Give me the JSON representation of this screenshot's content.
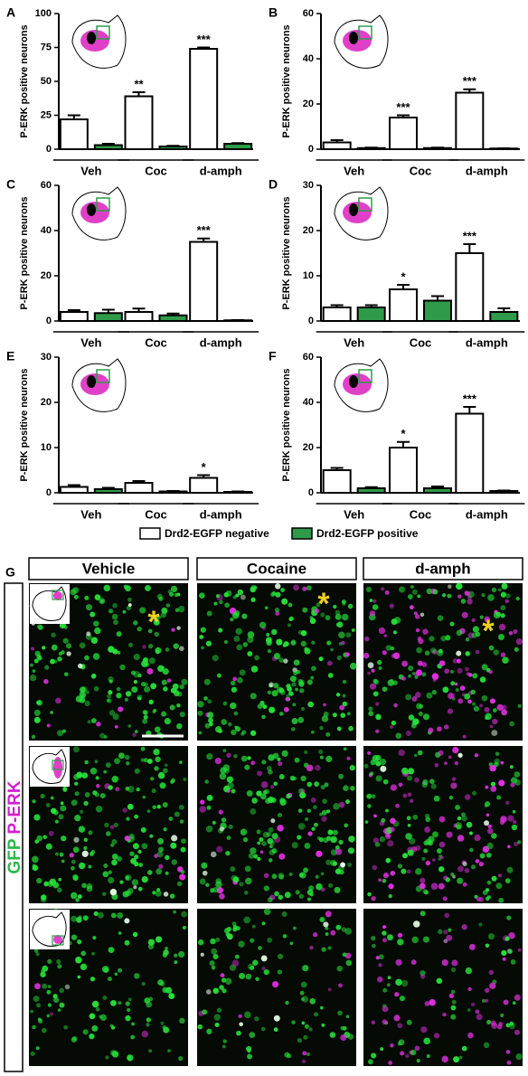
{
  "chart_data": [
    {
      "type": "bar",
      "panel": "A",
      "ylabel": "P-ERK positive neurons",
      "ylim": [
        0,
        100
      ],
      "yticks": [
        0,
        25,
        50,
        75,
        100
      ],
      "categories": [
        "Veh",
        "Coc",
        "d-amph"
      ],
      "series": [
        {
          "name": "Drd2-EGFP negative",
          "color": "#ffffff",
          "values": [
            22,
            39,
            74
          ],
          "errors": [
            3,
            3,
            1
          ]
        },
        {
          "color": "#2e9a4a",
          "values": [
            3,
            2,
            4
          ],
          "errors": [
            1,
            0.5,
            0.5
          ]
        }
      ],
      "significance": [
        null,
        "**",
        "***"
      ]
    },
    {
      "type": "bar",
      "panel": "B",
      "ylabel": "P-ERK positive neurons",
      "ylim": [
        0,
        60
      ],
      "yticks": [
        0,
        20,
        40,
        60
      ],
      "categories": [
        "Veh",
        "Coc",
        "d-amph"
      ],
      "series": [
        {
          "name": "Drd2-EGFP negative",
          "color": "#ffffff",
          "values": [
            3,
            14,
            25
          ],
          "errors": [
            1,
            1,
            1.5
          ]
        },
        {
          "name": "Drd2-EGFP positive",
          "color": "#2e9a4a",
          "values": [
            0.5,
            0.5,
            0.3
          ],
          "errors": [
            0.2,
            0.2,
            0.1
          ]
        }
      ],
      "significance": [
        null,
        "***",
        "***"
      ]
    },
    {
      "type": "bar",
      "panel": "C",
      "ylabel": "P-ERK positive neurons",
      "ylim": [
        0,
        60
      ],
      "yticks": [
        0,
        20,
        40,
        60
      ],
      "categories": [
        "Veh",
        "Coc",
        "d-amph"
      ],
      "series": [
        {
          "color": "#ffffff",
          "values": [
            4,
            4,
            35
          ],
          "errors": [
            0.8,
            1.5,
            1.5
          ]
        },
        {
          "color": "#2e9a4a",
          "values": [
            3.5,
            2.5,
            0.3
          ],
          "errors": [
            1.5,
            0.8,
            0.1
          ]
        }
      ],
      "significance": [
        null,
        null,
        "***"
      ]
    },
    {
      "type": "bar",
      "panel": "D",
      "ylabel": "P-ERK positive neurons",
      "ylim": [
        0,
        30
      ],
      "yticks": [
        0,
        10,
        20,
        30
      ],
      "categories": [
        "Veh",
        "Coc",
        "d-amph"
      ],
      "series": [
        {
          "color": "#ffffff",
          "values": [
            3,
            7,
            15
          ],
          "errors": [
            0.5,
            1,
            2
          ]
        },
        {
          "color": "#2e9a4a",
          "values": [
            3,
            4.5,
            2
          ],
          "errors": [
            0.5,
            1,
            0.8
          ]
        }
      ],
      "significance": [
        null,
        "*",
        "***"
      ]
    },
    {
      "type": "bar",
      "panel": "E",
      "ylabel": "P-ERK positive neurons",
      "ylim": [
        0,
        30
      ],
      "yticks": [
        0,
        10,
        20,
        30
      ],
      "categories": [
        "Veh",
        "Coc",
        "d-amph"
      ],
      "series": [
        {
          "color": "#ffffff",
          "values": [
            1.3,
            2.2,
            3.3
          ],
          "errors": [
            0.4,
            0.4,
            0.6
          ]
        },
        {
          "color": "#2e9a4a",
          "values": [
            0.8,
            0.3,
            0.2
          ],
          "errors": [
            0.3,
            0.1,
            0.1
          ]
        }
      ],
      "significance": [
        null,
        null,
        "*"
      ]
    },
    {
      "type": "bar",
      "panel": "F",
      "ylabel": "P-ERK positive neurons",
      "ylim": [
        0,
        60
      ],
      "yticks": [
        0,
        20,
        40,
        60
      ],
      "categories": [
        "Veh",
        "Coc",
        "d-amph"
      ],
      "series": [
        {
          "color": "#ffffff",
          "values": [
            10,
            20,
            35
          ],
          "errors": [
            1,
            2.5,
            3
          ]
        },
        {
          "color": "#2e9a4a",
          "values": [
            2,
            2,
            0.8
          ],
          "errors": [
            0.5,
            0.8,
            0.2
          ]
        }
      ],
      "significance": [
        null,
        "*",
        "***"
      ]
    }
  ],
  "panel_g": {
    "label": "G",
    "columns": [
      "Vehicle",
      "Cocaine",
      "d-amph"
    ],
    "stain_labels": [
      "GFP",
      "P-ERK"
    ]
  }
}
